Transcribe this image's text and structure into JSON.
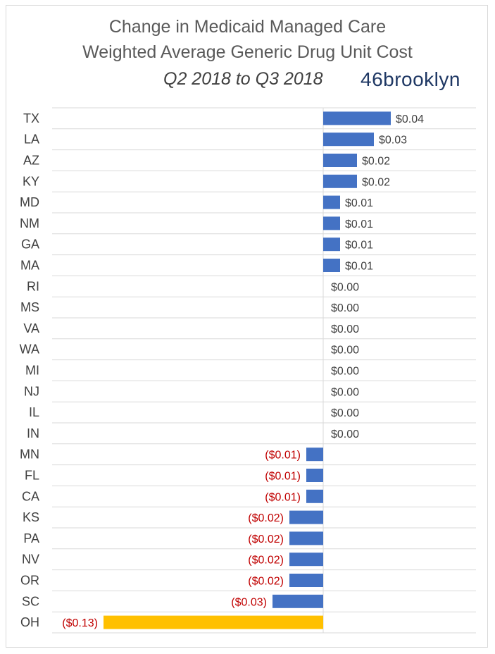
{
  "chart_data": {
    "type": "bar",
    "orientation": "horizontal",
    "title": "Change in Medicaid Managed Care",
    "subtitle": "Weighted Average Generic Drug Unit Cost",
    "period": "Q2 2018 to Q3 2018",
    "brand": "46brooklyn",
    "xlabel": "",
    "ylabel": "",
    "grid": true,
    "legend": "none",
    "colors": {
      "default_bar": "#4472c4",
      "highlight_bar": "#ffc000",
      "positive_label": "#404040",
      "negative_label": "#c00000"
    },
    "categories": [
      "TX",
      "LA",
      "AZ",
      "KY",
      "MD",
      "NM",
      "GA",
      "MA",
      "RI",
      "MS",
      "VA",
      "WA",
      "MI",
      "NJ",
      "IL",
      "IN",
      "MN",
      "FL",
      "CA",
      "KS",
      "PA",
      "NV",
      "OR",
      "SC",
      "OH"
    ],
    "values": [
      0.04,
      0.03,
      0.02,
      0.02,
      0.01,
      0.01,
      0.01,
      0.01,
      0.0,
      0.0,
      0.0,
      0.0,
      0.0,
      0.0,
      0.0,
      0.0,
      -0.01,
      -0.01,
      -0.01,
      -0.02,
      -0.02,
      -0.02,
      -0.02,
      -0.03,
      -0.13
    ],
    "value_labels": [
      "$0.04",
      "$0.03",
      "$0.02",
      "$0.02",
      "$0.01",
      "$0.01",
      "$0.01",
      "$0.01",
      "$0.00",
      "$0.00",
      "$0.00",
      "$0.00",
      "$0.00",
      "$0.00",
      "$0.00",
      "$0.00",
      "($0.01)",
      "($0.01)",
      "($0.01)",
      "($0.02)",
      "($0.02)",
      "($0.02)",
      "($0.02)",
      "($0.03)",
      "($0.13)"
    ],
    "highlight": "OH"
  }
}
